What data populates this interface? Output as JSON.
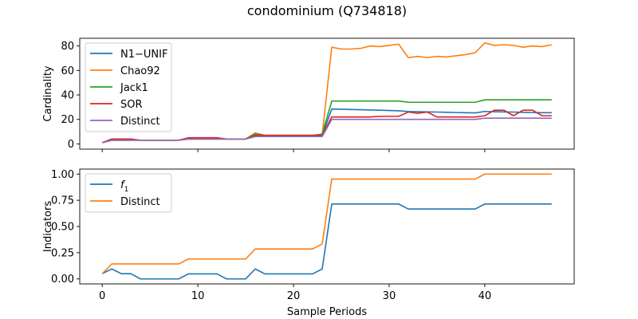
{
  "title": "condominium (Q734818)",
  "chart_data": [
    {
      "type": "line",
      "title": "",
      "xlabel": "",
      "ylabel": "Cardinality",
      "xlim": [
        -2.35,
        49.35
      ],
      "ylim": [
        -4.3,
        86.3
      ],
      "xticks": [
        0,
        10,
        20,
        30,
        40
      ],
      "yticks": [
        0,
        20,
        40,
        60,
        80
      ],
      "show_xtick_labels": false,
      "grid": false,
      "legend": "top-left",
      "series": [
        {
          "name": "N1−UNIF",
          "color": "#1f77b4",
          "values": [
            1,
            3,
            3,
            3,
            3,
            3,
            3,
            3,
            3,
            4,
            4,
            4,
            4,
            4,
            4,
            4,
            6,
            6,
            6,
            6,
            6,
            6,
            6,
            7,
            28.5,
            28.3,
            28.1,
            27.9,
            27.7,
            27.5,
            27.3,
            27,
            26.5,
            26.3,
            26.1,
            26,
            25.8,
            25.6,
            25.5,
            25.3,
            26.5,
            26.3,
            26.1,
            26,
            25.8,
            25.6,
            25.5,
            25.5
          ]
        },
        {
          "name": "Chao92",
          "color": "#ff7f0e",
          "values": [
            1,
            3,
            3,
            3,
            3,
            3,
            3,
            3,
            3,
            4,
            4,
            4,
            4,
            4,
            4,
            4,
            9,
            7,
            7,
            7,
            7,
            7,
            7,
            7,
            79,
            77.5,
            77.5,
            78,
            80,
            79.5,
            80.5,
            81.5,
            70.5,
            71.5,
            70.5,
            71.5,
            71,
            72,
            73,
            74.5,
            82.5,
            80.5,
            81,
            80.5,
            79,
            80,
            79.5,
            81
          ]
        },
        {
          "name": "Jack1",
          "color": "#2ca02c",
          "values": [
            1,
            3,
            3,
            3,
            3,
            3,
            3,
            3,
            3,
            4,
            4,
            4,
            4,
            4,
            4,
            4,
            8,
            7,
            7,
            7,
            7,
            7,
            7,
            8,
            35,
            35,
            35,
            35,
            35,
            35,
            35,
            35,
            34,
            34,
            34,
            34,
            34,
            34,
            34,
            34,
            36,
            36,
            36,
            36,
            36,
            36,
            36,
            36
          ]
        },
        {
          "name": "SOR",
          "color": "#d62728",
          "values": [
            1,
            4,
            4,
            4,
            3,
            3,
            3,
            3,
            3,
            5,
            5,
            5,
            5,
            4,
            4,
            4,
            7,
            7,
            7,
            7,
            7,
            7,
            7,
            7,
            22,
            22,
            22,
            22,
            22,
            22.5,
            22.5,
            22.5,
            26,
            25,
            26,
            22,
            22,
            22,
            22,
            22,
            23,
            27.5,
            27.5,
            23,
            27.5,
            27.5,
            23,
            23
          ]
        },
        {
          "name": "Distinct",
          "color": "#9467bd",
          "values": [
            1,
            3,
            3,
            3,
            3,
            3,
            3,
            3,
            3,
            4,
            4,
            4,
            4,
            4,
            4,
            4,
            6,
            6,
            6,
            6,
            6,
            6,
            6,
            6,
            20,
            20,
            20,
            20,
            20,
            20,
            20,
            20,
            20,
            20,
            20,
            20,
            20,
            20,
            20,
            20,
            21,
            21,
            21,
            21,
            21,
            21,
            21,
            21
          ]
        }
      ]
    },
    {
      "type": "line",
      "title": "",
      "xlabel": "Sample Periods",
      "ylabel": "Indicators",
      "xlim": [
        -2.35,
        49.35
      ],
      "ylim": [
        -0.0476,
        1.0476
      ],
      "xticks": [
        0,
        10,
        20,
        30,
        40
      ],
      "yticks": [
        0.0,
        0.25,
        0.5,
        0.75,
        1.0
      ],
      "ytick_labels": [
        "0.00",
        "0.25",
        "0.50",
        "0.75",
        "1.00"
      ],
      "show_xtick_labels": true,
      "grid": false,
      "legend": "top-left",
      "series": [
        {
          "name": "f1",
          "color": "#1f77b4",
          "values": [
            0.05,
            0.095,
            0.05,
            0.05,
            0,
            0,
            0,
            0,
            0,
            0.048,
            0.048,
            0.048,
            0.048,
            0,
            0,
            0,
            0.095,
            0.048,
            0.048,
            0.048,
            0.048,
            0.048,
            0.048,
            0.095,
            0.714,
            0.714,
            0.714,
            0.714,
            0.714,
            0.714,
            0.714,
            0.714,
            0.667,
            0.667,
            0.667,
            0.667,
            0.667,
            0.667,
            0.667,
            0.667,
            0.714,
            0.714,
            0.714,
            0.714,
            0.714,
            0.714,
            0.714,
            0.714
          ]
        },
        {
          "name": "Distinct",
          "color": "#ff7f0e",
          "values": [
            0.05,
            0.143,
            0.143,
            0.143,
            0.143,
            0.143,
            0.143,
            0.143,
            0.143,
            0.19,
            0.19,
            0.19,
            0.19,
            0.19,
            0.19,
            0.19,
            0.286,
            0.286,
            0.286,
            0.286,
            0.286,
            0.286,
            0.286,
            0.333,
            0.952,
            0.952,
            0.952,
            0.952,
            0.952,
            0.952,
            0.952,
            0.952,
            0.952,
            0.952,
            0.952,
            0.952,
            0.952,
            0.952,
            0.952,
            0.952,
            1,
            1,
            1,
            1,
            1,
            1,
            1,
            1
          ]
        }
      ]
    }
  ]
}
